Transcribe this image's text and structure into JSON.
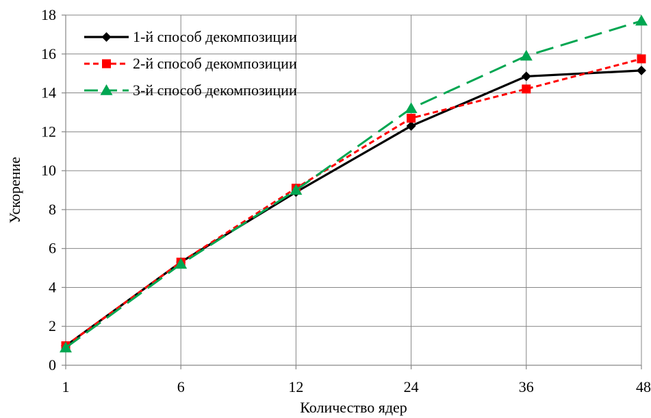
{
  "chart_data": {
    "type": "line",
    "categories": [
      "1",
      "6",
      "12",
      "24",
      "36",
      "48"
    ],
    "xlabel": "Количество ядер",
    "ylabel": "Ускорение",
    "ylim": [
      0,
      18
    ],
    "yticks": [
      0,
      2,
      4,
      6,
      8,
      10,
      12,
      14,
      16,
      18
    ],
    "grid": "vertical and horizontal",
    "legend_position": "top-left",
    "series": [
      {
        "name": "1-й способ декомпозиции",
        "values": [
          1.0,
          5.3,
          8.9,
          12.3,
          14.85,
          15.15
        ],
        "color": "#000000",
        "line_style": "solid",
        "marker": "diamond"
      },
      {
        "name": "2-й способ декомпозиции",
        "values": [
          1.0,
          5.3,
          9.1,
          12.7,
          14.2,
          15.75
        ],
        "color": "#ff0000",
        "line_style": "dotted",
        "marker": "square"
      },
      {
        "name": "3-й способ декомпозиции",
        "values": [
          0.9,
          5.2,
          9.0,
          13.2,
          15.9,
          17.7
        ],
        "color": "#00a651",
        "line_style": "dashed",
        "marker": "triangle"
      }
    ]
  }
}
